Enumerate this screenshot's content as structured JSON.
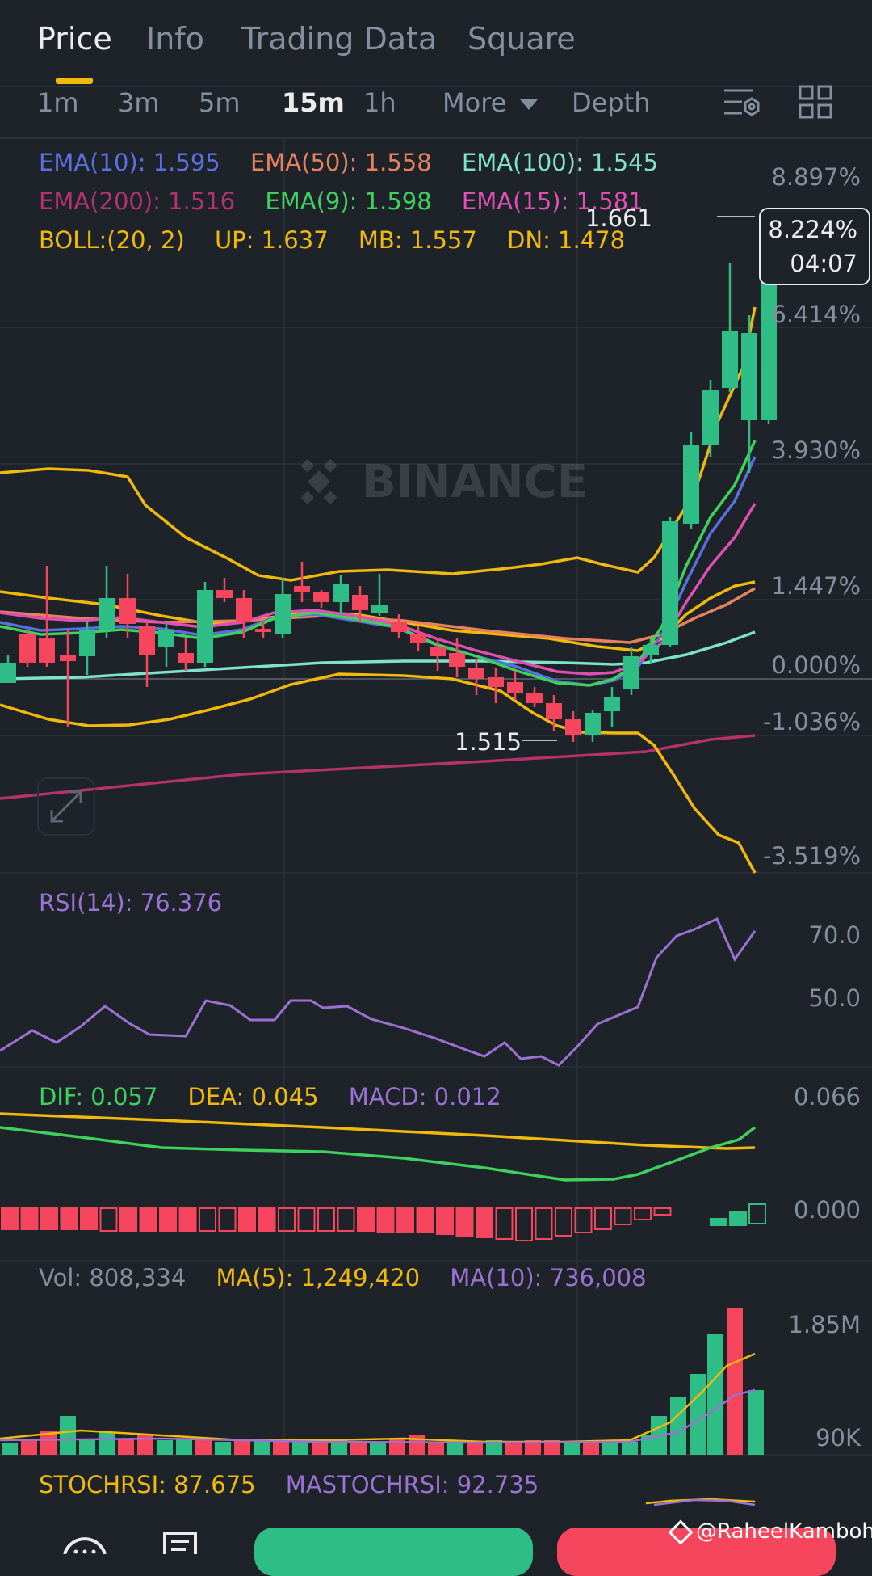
{
  "tabs": [
    {
      "label": "Price",
      "active": true
    },
    {
      "label": "Info",
      "active": false
    },
    {
      "label": "Trading Data",
      "active": false
    },
    {
      "label": "Square",
      "active": false
    }
  ],
  "timeframes": {
    "items": [
      {
        "label": "1m",
        "active": false
      },
      {
        "label": "3m",
        "active": false
      },
      {
        "label": "5m",
        "active": false
      },
      {
        "label": "15m",
        "active": true
      },
      {
        "label": "1h",
        "active": false
      }
    ],
    "more": "More",
    "depth": "Depth"
  },
  "indicators": {
    "ema10": "EMA(10): 1.595",
    "ema50": "EMA(50): 1.558",
    "ema100": "EMA(100): 1.545",
    "ema200": "EMA(200): 1.516",
    "ema9": "EMA(9): 1.598",
    "ema15": "EMA(15): 1.581",
    "boll": "BOLL:(20, 2)",
    "boll_up": "UP: 1.637",
    "boll_mb": "MB: 1.557",
    "boll_dn": "DN: 1.478"
  },
  "price_axis": [
    "8.897%",
    "6.414%",
    "3.930%",
    "1.447%",
    "0.000%",
    "-1.036%",
    "-3.519%"
  ],
  "current_tag": {
    "percent": "8.224%",
    "countdown": "04:07"
  },
  "high_label": "1.661",
  "low_label": "1.515",
  "watermark": "BINANCE",
  "rsi": {
    "label": "RSI(14): 76.376",
    "axis": [
      "70.0",
      "50.0"
    ]
  },
  "macd": {
    "dif": "DIF: 0.057",
    "dea": "DEA: 0.045",
    "macd": "MACD: 0.012",
    "axis": [
      "0.066",
      "0.000"
    ]
  },
  "volume": {
    "vol": "Vol: 808,334",
    "ma5": "MA(5): 1,249,420",
    "ma10": "MA(10): 736,008",
    "axis": [
      "1.85M",
      "90K"
    ]
  },
  "stochrsi": {
    "stoch": "STOCHRSI: 87.675",
    "mastoch": "MASTOCHRSI: 92.735"
  },
  "credit": "@RaheelKamboh",
  "colors": {
    "up": "#2ebd85",
    "down": "#f6465d",
    "bg": "#1e2329",
    "accent": "#f0b90b",
    "ema10": "#5a6fe0",
    "ema50": "#e8825e",
    "ema100": "#7fe3c9",
    "ema200": "#b3336b",
    "ema9": "#3fd15e",
    "ema15": "#e04fb3",
    "boll": "#f0b90b",
    "rsi": "#9b72d4",
    "dif": "#3fd15e",
    "dea": "#f0b90b"
  },
  "icons": [
    "chevron-down-icon",
    "indicator-settings-icon",
    "grid-layout-icon",
    "expand-icon",
    "binance-logo-icon",
    "chat-icon",
    "orders-icon"
  ]
}
